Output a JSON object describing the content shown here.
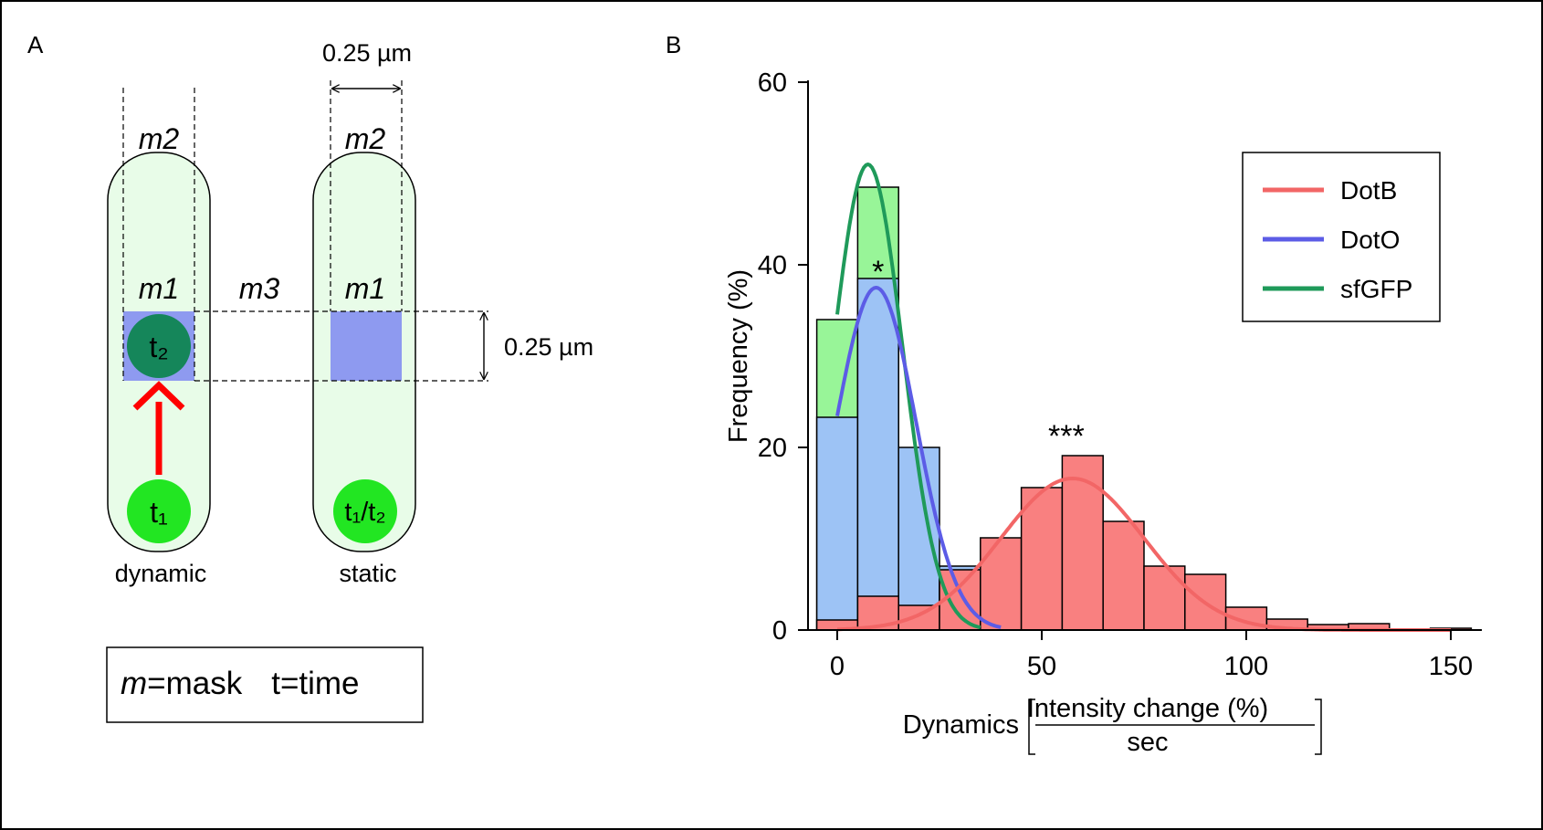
{
  "panel_a": {
    "label": "A",
    "dimension_top": "0.25 µm",
    "dimension_right": "0.25 µm",
    "cells": [
      {
        "name": "dynamic",
        "caption": "dynamic",
        "mask_top": "m2",
        "mask_mid": "m1",
        "spot_start": "t₁",
        "spot_end": "t₂"
      },
      {
        "name": "static",
        "caption": "static",
        "mask_top": "m2",
        "mask_mid": "m1",
        "spot_same": "t₁/t₂"
      }
    ],
    "mask_between": "m3",
    "legend_m": "m",
    "legend_mask": "=mask",
    "legend_time": "t=time"
  },
  "colors": {
    "DotB": "#f26666",
    "DotO": "#5c5ce6",
    "sfGFP": "#1f9a5a",
    "DotB_bar": "#f98080",
    "DotO_bar": "#9dc3f5",
    "sfGFP_bar": "#98f598",
    "cell_fill": "#e8fce8",
    "mask_fill": "#8e9af0",
    "spot_bright": "#22e622",
    "spot_dark": "#15865a",
    "arrow": "#ff0000"
  },
  "chart_data": {
    "panel_label": "B",
    "type": "bar",
    "xlabel_prefix": "Dynamics",
    "xlabel_numerator": "Intensity change (%)",
    "xlabel_denominator": "sec",
    "ylabel": "Frequency (%)",
    "xlim": [
      0,
      155
    ],
    "ylim": [
      0,
      60
    ],
    "x_ticks": [
      0,
      50,
      100,
      150
    ],
    "y_ticks": [
      0,
      20,
      40,
      60
    ],
    "bin_width": 10,
    "bin_centers": [
      0,
      10,
      20,
      30,
      40,
      50,
      60,
      70,
      80,
      90,
      100,
      110,
      120,
      130,
      140,
      150
    ],
    "series": [
      {
        "name": "sfGFP",
        "values": [
          34,
          48.5,
          0,
          0,
          0,
          0,
          0,
          0,
          0,
          0,
          0,
          0,
          0,
          0,
          0,
          0
        ],
        "fit": {
          "amplitude": 51,
          "mean": 7.5,
          "sd": 8.5,
          "range": [
            0,
            35
          ]
        }
      },
      {
        "name": "DotO",
        "values": [
          23.3,
          38.5,
          20,
          7,
          0,
          0,
          0,
          0,
          0,
          0,
          0,
          0,
          0,
          0,
          0,
          0
        ],
        "fit": {
          "amplitude": 37.5,
          "mean": 9.5,
          "sd": 9.8,
          "range": [
            0,
            40
          ]
        }
      },
      {
        "name": "DotB",
        "values": [
          1.1,
          3.7,
          2.7,
          6.6,
          10.1,
          15.6,
          19.1,
          11.9,
          7.0,
          6.1,
          2.5,
          1.2,
          0.6,
          0.7,
          0.1,
          0.2
        ],
        "fit": {
          "amplitude": 16.6,
          "mean": 57.5,
          "sd": 17.5,
          "range": [
            0,
            150
          ]
        }
      }
    ],
    "legend": [
      "DotB",
      "DotO",
      "sfGFP"
    ],
    "legend_placement": "top-right",
    "annotations": [
      {
        "text": "*",
        "x": 10,
        "y": 39.5
      },
      {
        "text": "***",
        "x": 56,
        "y": 21.5
      }
    ]
  }
}
